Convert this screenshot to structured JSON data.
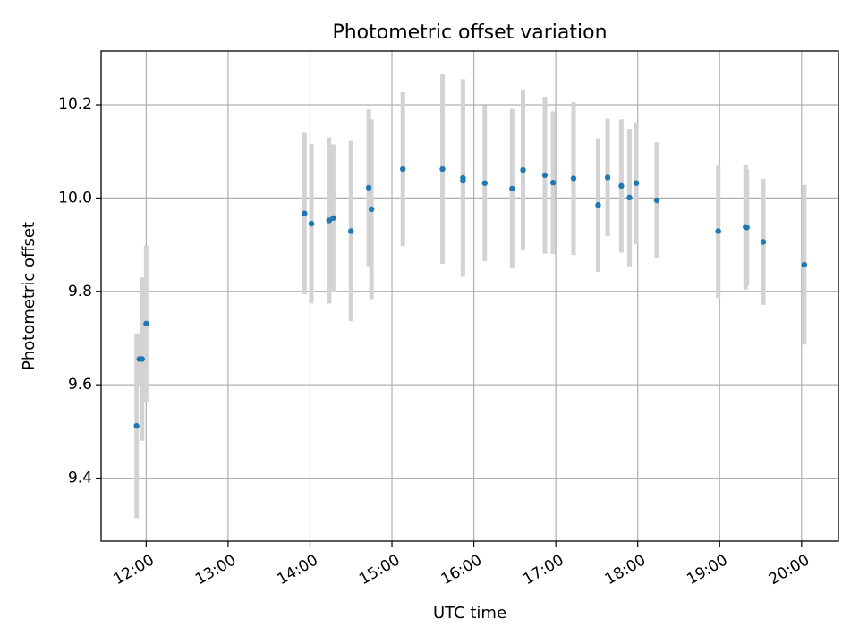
{
  "chart_data": {
    "type": "scatter",
    "title": "Photometric offset variation",
    "xlabel": "UTC time",
    "ylabel": "Photometric offset",
    "grid": true,
    "xlim": [
      11.45,
      20.45
    ],
    "ylim": [
      9.265,
      10.315
    ],
    "x_ticks": [
      {
        "value": 12,
        "label": "12:00"
      },
      {
        "value": 13,
        "label": "13:00"
      },
      {
        "value": 14,
        "label": "14:00"
      },
      {
        "value": 15,
        "label": "15:00"
      },
      {
        "value": 16,
        "label": "16:00"
      },
      {
        "value": 17,
        "label": "17:00"
      },
      {
        "value": 18,
        "label": "18:00"
      },
      {
        "value": 19,
        "label": "19:00"
      },
      {
        "value": 20,
        "label": "20:00"
      }
    ],
    "y_ticks": [
      {
        "value": 9.4,
        "label": "9.4"
      },
      {
        "value": 9.6,
        "label": "9.6"
      },
      {
        "value": 9.8,
        "label": "9.8"
      },
      {
        "value": 10.0,
        "label": "10.0"
      },
      {
        "value": 10.2,
        "label": "10.2"
      }
    ],
    "series": [
      {
        "name": "Photometric offset",
        "marker_color": "#1f77b4",
        "errorbar_color": "#d3d3d3",
        "points": [
          {
            "x": 11.883,
            "y": 9.512,
            "err": 0.198
          },
          {
            "x": 11.95,
            "y": 9.655,
            "err": 0.175
          },
          {
            "x": 11.917,
            "y": 9.655,
            "err": 0.055
          },
          {
            "x": 12.0,
            "y": 9.731,
            "err": 0.167
          },
          {
            "x": 13.933,
            "y": 9.967,
            "err": 0.173
          },
          {
            "x": 14.017,
            "y": 9.945,
            "err": 0.171
          },
          {
            "x": 14.233,
            "y": 9.952,
            "err": 0.178
          },
          {
            "x": 14.283,
            "y": 9.957,
            "err": 0.158
          },
          {
            "x": 14.5,
            "y": 9.929,
            "err": 0.193
          },
          {
            "x": 14.717,
            "y": 10.022,
            "err": 0.168
          },
          {
            "x": 14.75,
            "y": 9.976,
            "err": 0.193
          },
          {
            "x": 15.133,
            "y": 10.062,
            "err": 0.165
          },
          {
            "x": 15.617,
            "y": 10.062,
            "err": 0.203
          },
          {
            "x": 15.867,
            "y": 10.043,
            "err": 0.212
          },
          {
            "x": 15.867,
            "y": 10.037,
            "err": 0.192
          },
          {
            "x": 16.133,
            "y": 10.032,
            "err": 0.167
          },
          {
            "x": 16.467,
            "y": 10.02,
            "err": 0.171
          },
          {
            "x": 16.6,
            "y": 10.06,
            "err": 0.171
          },
          {
            "x": 16.867,
            "y": 10.049,
            "err": 0.168
          },
          {
            "x": 16.967,
            "y": 10.033,
            "err": 0.153
          },
          {
            "x": 17.217,
            "y": 10.042,
            "err": 0.164
          },
          {
            "x": 17.517,
            "y": 9.985,
            "err": 0.143
          },
          {
            "x": 17.633,
            "y": 10.044,
            "err": 0.126
          },
          {
            "x": 17.8,
            "y": 10.026,
            "err": 0.143
          },
          {
            "x": 17.9,
            "y": 10.001,
            "err": 0.147
          },
          {
            "x": 17.983,
            "y": 10.032,
            "err": 0.131
          },
          {
            "x": 18.233,
            "y": 9.995,
            "err": 0.124
          },
          {
            "x": 18.983,
            "y": 9.929,
            "err": 0.143
          },
          {
            "x": 19.317,
            "y": 9.938,
            "err": 0.134
          },
          {
            "x": 19.333,
            "y": 9.937,
            "err": 0.125
          },
          {
            "x": 19.533,
            "y": 9.906,
            "err": 0.135
          },
          {
            "x": 20.033,
            "y": 9.857,
            "err": 0.171
          }
        ]
      }
    ]
  }
}
